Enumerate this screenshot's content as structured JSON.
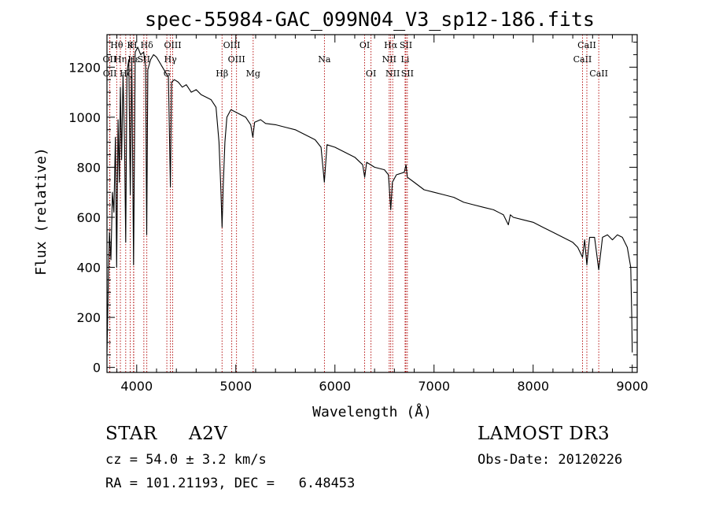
{
  "chart_data": {
    "type": "line",
    "title": "spec-55984-GAC_099N04_V3_sp12-186.fits",
    "xlabel": "Wavelength (Å)",
    "ylabel": "Flux (relative)",
    "xlim": [
      3700,
      9050
    ],
    "ylim": [
      -20,
      1330
    ],
    "xticks": [
      4000,
      5000,
      6000,
      7000,
      8000,
      9000
    ],
    "yticks": [
      0,
      200,
      400,
      600,
      800,
      1000,
      1200
    ],
    "series": [
      {
        "name": "flux",
        "points": [
          [
            3700,
            60
          ],
          [
            3712,
            310
          ],
          [
            3725,
            540
          ],
          [
            3740,
            430
          ],
          [
            3755,
            700
          ],
          [
            3770,
            620
          ],
          [
            3785,
            920
          ],
          [
            3798,
            400
          ],
          [
            3812,
            990
          ],
          [
            3825,
            740
          ],
          [
            3835,
            1120
          ],
          [
            3848,
            830
          ],
          [
            3862,
            1170
          ],
          [
            3878,
            880
          ],
          [
            3889,
            500
          ],
          [
            3902,
            1180
          ],
          [
            3920,
            1230
          ],
          [
            3935,
            690
          ],
          [
            3950,
            1240
          ],
          [
            3968,
            410
          ],
          [
            3985,
            1260
          ],
          [
            4010,
            1280
          ],
          [
            4040,
            1250
          ],
          [
            4070,
            1260
          ],
          [
            4090,
            1200
          ],
          [
            4101,
            530
          ],
          [
            4112,
            1190
          ],
          [
            4140,
            1230
          ],
          [
            4170,
            1250
          ],
          [
            4200,
            1240
          ],
          [
            4230,
            1220
          ],
          [
            4260,
            1200
          ],
          [
            4290,
            1180
          ],
          [
            4320,
            1160
          ],
          [
            4340,
            720
          ],
          [
            4352,
            1140
          ],
          [
            4380,
            1150
          ],
          [
            4420,
            1140
          ],
          [
            4460,
            1120
          ],
          [
            4500,
            1130
          ],
          [
            4550,
            1100
          ],
          [
            4600,
            1110
          ],
          [
            4650,
            1090
          ],
          [
            4700,
            1080
          ],
          [
            4750,
            1070
          ],
          [
            4800,
            1040
          ],
          [
            4830,
            900
          ],
          [
            4850,
            700
          ],
          [
            4861,
            560
          ],
          [
            4872,
            720
          ],
          [
            4890,
            900
          ],
          [
            4910,
            1000
          ],
          [
            4950,
            1030
          ],
          [
            5000,
            1020
          ],
          [
            5050,
            1010
          ],
          [
            5100,
            1000
          ],
          [
            5150,
            970
          ],
          [
            5172,
            920
          ],
          [
            5190,
            980
          ],
          [
            5250,
            990
          ],
          [
            5300,
            975
          ],
          [
            5400,
            970
          ],
          [
            5500,
            960
          ],
          [
            5600,
            950
          ],
          [
            5700,
            930
          ],
          [
            5800,
            910
          ],
          [
            5860,
            880
          ],
          [
            5893,
            740
          ],
          [
            5920,
            890
          ],
          [
            6000,
            880
          ],
          [
            6100,
            860
          ],
          [
            6200,
            840
          ],
          [
            6280,
            810
          ],
          [
            6300,
            760
          ],
          [
            6320,
            820
          ],
          [
            6400,
            800
          ],
          [
            6500,
            790
          ],
          [
            6540,
            770
          ],
          [
            6563,
            630
          ],
          [
            6580,
            740
          ],
          [
            6620,
            770
          ],
          [
            6700,
            780
          ],
          [
            6717,
            810
          ],
          [
            6731,
            760
          ],
          [
            6800,
            740
          ],
          [
            6900,
            710
          ],
          [
            7000,
            700
          ],
          [
            7100,
            690
          ],
          [
            7200,
            680
          ],
          [
            7300,
            660
          ],
          [
            7400,
            650
          ],
          [
            7500,
            640
          ],
          [
            7600,
            630
          ],
          [
            7700,
            610
          ],
          [
            7750,
            570
          ],
          [
            7770,
            610
          ],
          [
            7800,
            600
          ],
          [
            7900,
            590
          ],
          [
            8000,
            580
          ],
          [
            8100,
            560
          ],
          [
            8200,
            540
          ],
          [
            8300,
            520
          ],
          [
            8400,
            500
          ],
          [
            8450,
            480
          ],
          [
            8498,
            440
          ],
          [
            8520,
            510
          ],
          [
            8542,
            410
          ],
          [
            8570,
            520
          ],
          [
            8620,
            520
          ],
          [
            8662,
            390
          ],
          [
            8700,
            520
          ],
          [
            8750,
            530
          ],
          [
            8800,
            510
          ],
          [
            8850,
            530
          ],
          [
            8900,
            520
          ],
          [
            8950,
            480
          ],
          [
            8985,
            400
          ],
          [
            8995,
            200
          ],
          [
            9000,
            60
          ]
        ]
      }
    ],
    "line_markers": [
      {
        "label": "Hθ",
        "wavelength": 3798,
        "row": 1
      },
      {
        "label": "OII",
        "wavelength": 3727,
        "row": 2
      },
      {
        "label": "OII",
        "wavelength": 3729,
        "row": 3
      },
      {
        "label": "Hη",
        "wavelength": 3835,
        "row": 2
      },
      {
        "label": "Hζ",
        "wavelength": 3889,
        "row": 3
      },
      {
        "label": "K",
        "wavelength": 3934,
        "row": 1
      },
      {
        "label": "Hε",
        "wavelength": 3970,
        "row": 2
      },
      {
        "label": "H",
        "wavelength": 3968,
        "row": 1
      },
      {
        "label": "Hδ",
        "wavelength": 4102,
        "row": 1
      },
      {
        "label": "SII",
        "wavelength": 4072,
        "row": 2
      },
      {
        "label": "OIII",
        "wavelength": 4363,
        "row": 1
      },
      {
        "label": "Hγ",
        "wavelength": 4340,
        "row": 2
      },
      {
        "label": "G",
        "wavelength": 4304,
        "row": 3
      },
      {
        "label": "Hβ",
        "wavelength": 4861,
        "row": 3
      },
      {
        "label": "OIII",
        "wavelength": 4959,
        "row": 1
      },
      {
        "label": "OIII",
        "wavelength": 5007,
        "row": 2
      },
      {
        "label": "Mg",
        "wavelength": 5175,
        "row": 3
      },
      {
        "label": "Na",
        "wavelength": 5894,
        "row": 2
      },
      {
        "label": "OI",
        "wavelength": 6300,
        "row": 1
      },
      {
        "label": "OI",
        "wavelength": 6364,
        "row": 3
      },
      {
        "label": "Hα",
        "wavelength": 6563,
        "row": 1
      },
      {
        "label": "NII",
        "wavelength": 6548,
        "row": 2
      },
      {
        "label": "NII",
        "wavelength": 6583,
        "row": 3
      },
      {
        "label": "SII",
        "wavelength": 6716,
        "row": 1
      },
      {
        "label": "Li",
        "wavelength": 6708,
        "row": 2
      },
      {
        "label": "SII",
        "wavelength": 6731,
        "row": 3
      },
      {
        "label": "CaII",
        "wavelength": 8498,
        "row": 2
      },
      {
        "label": "CaII",
        "wavelength": 8542,
        "row": 1
      },
      {
        "label": "CaII",
        "wavelength": 8662,
        "row": 3
      }
    ]
  },
  "footer": {
    "object_type": "STAR",
    "subclass": "A2V",
    "survey": "LAMOST DR3",
    "cz": "cz = 54.0 ± 3.2 km/s",
    "obs_date": "Obs-Date: 20120226",
    "coords": "RA = 101.21193, DEC =   6.48453"
  },
  "colors": {
    "marker_line": "#b00000",
    "spectrum": "#000000",
    "axes": "#000000"
  }
}
